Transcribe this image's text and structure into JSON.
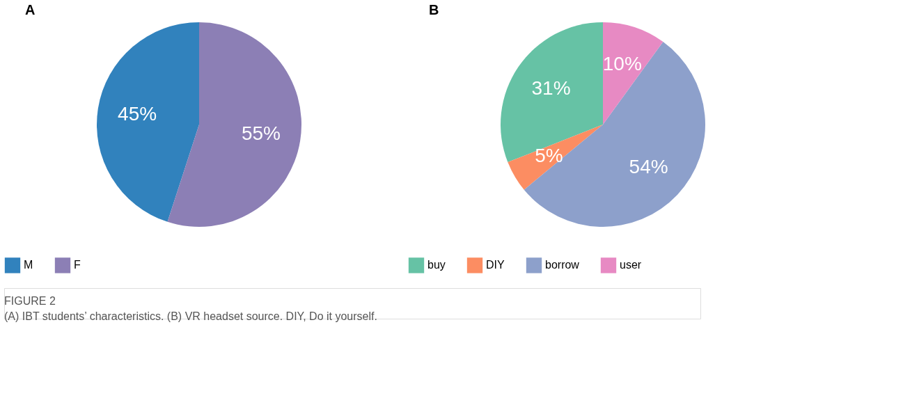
{
  "chart_data": [
    {
      "type": "pie",
      "title": "A",
      "categories": [
        "M",
        "F"
      ],
      "values": [
        45,
        55
      ],
      "colors": [
        "#3182bd",
        "#8c7fb5"
      ],
      "value_labels": [
        "45%",
        "55%"
      ],
      "legend": "bottom",
      "annotations": [
        "FIGURE 2",
        "(A) IBT students’ characteristics. (B) VR headset source. DIY, Do it yourself."
      ]
    },
    {
      "type": "pie",
      "title": "B",
      "categories": [
        "buy",
        "DIY",
        "borrow",
        "user"
      ],
      "values": [
        31,
        5,
        54,
        10
      ],
      "colors": [
        "#66c2a5",
        "#fc8d62",
        "#8da0cb",
        "#e78ac3"
      ],
      "value_labels": [
        "31%",
        "5%",
        "54%",
        "10%"
      ],
      "legend": "bottom"
    }
  ]
}
